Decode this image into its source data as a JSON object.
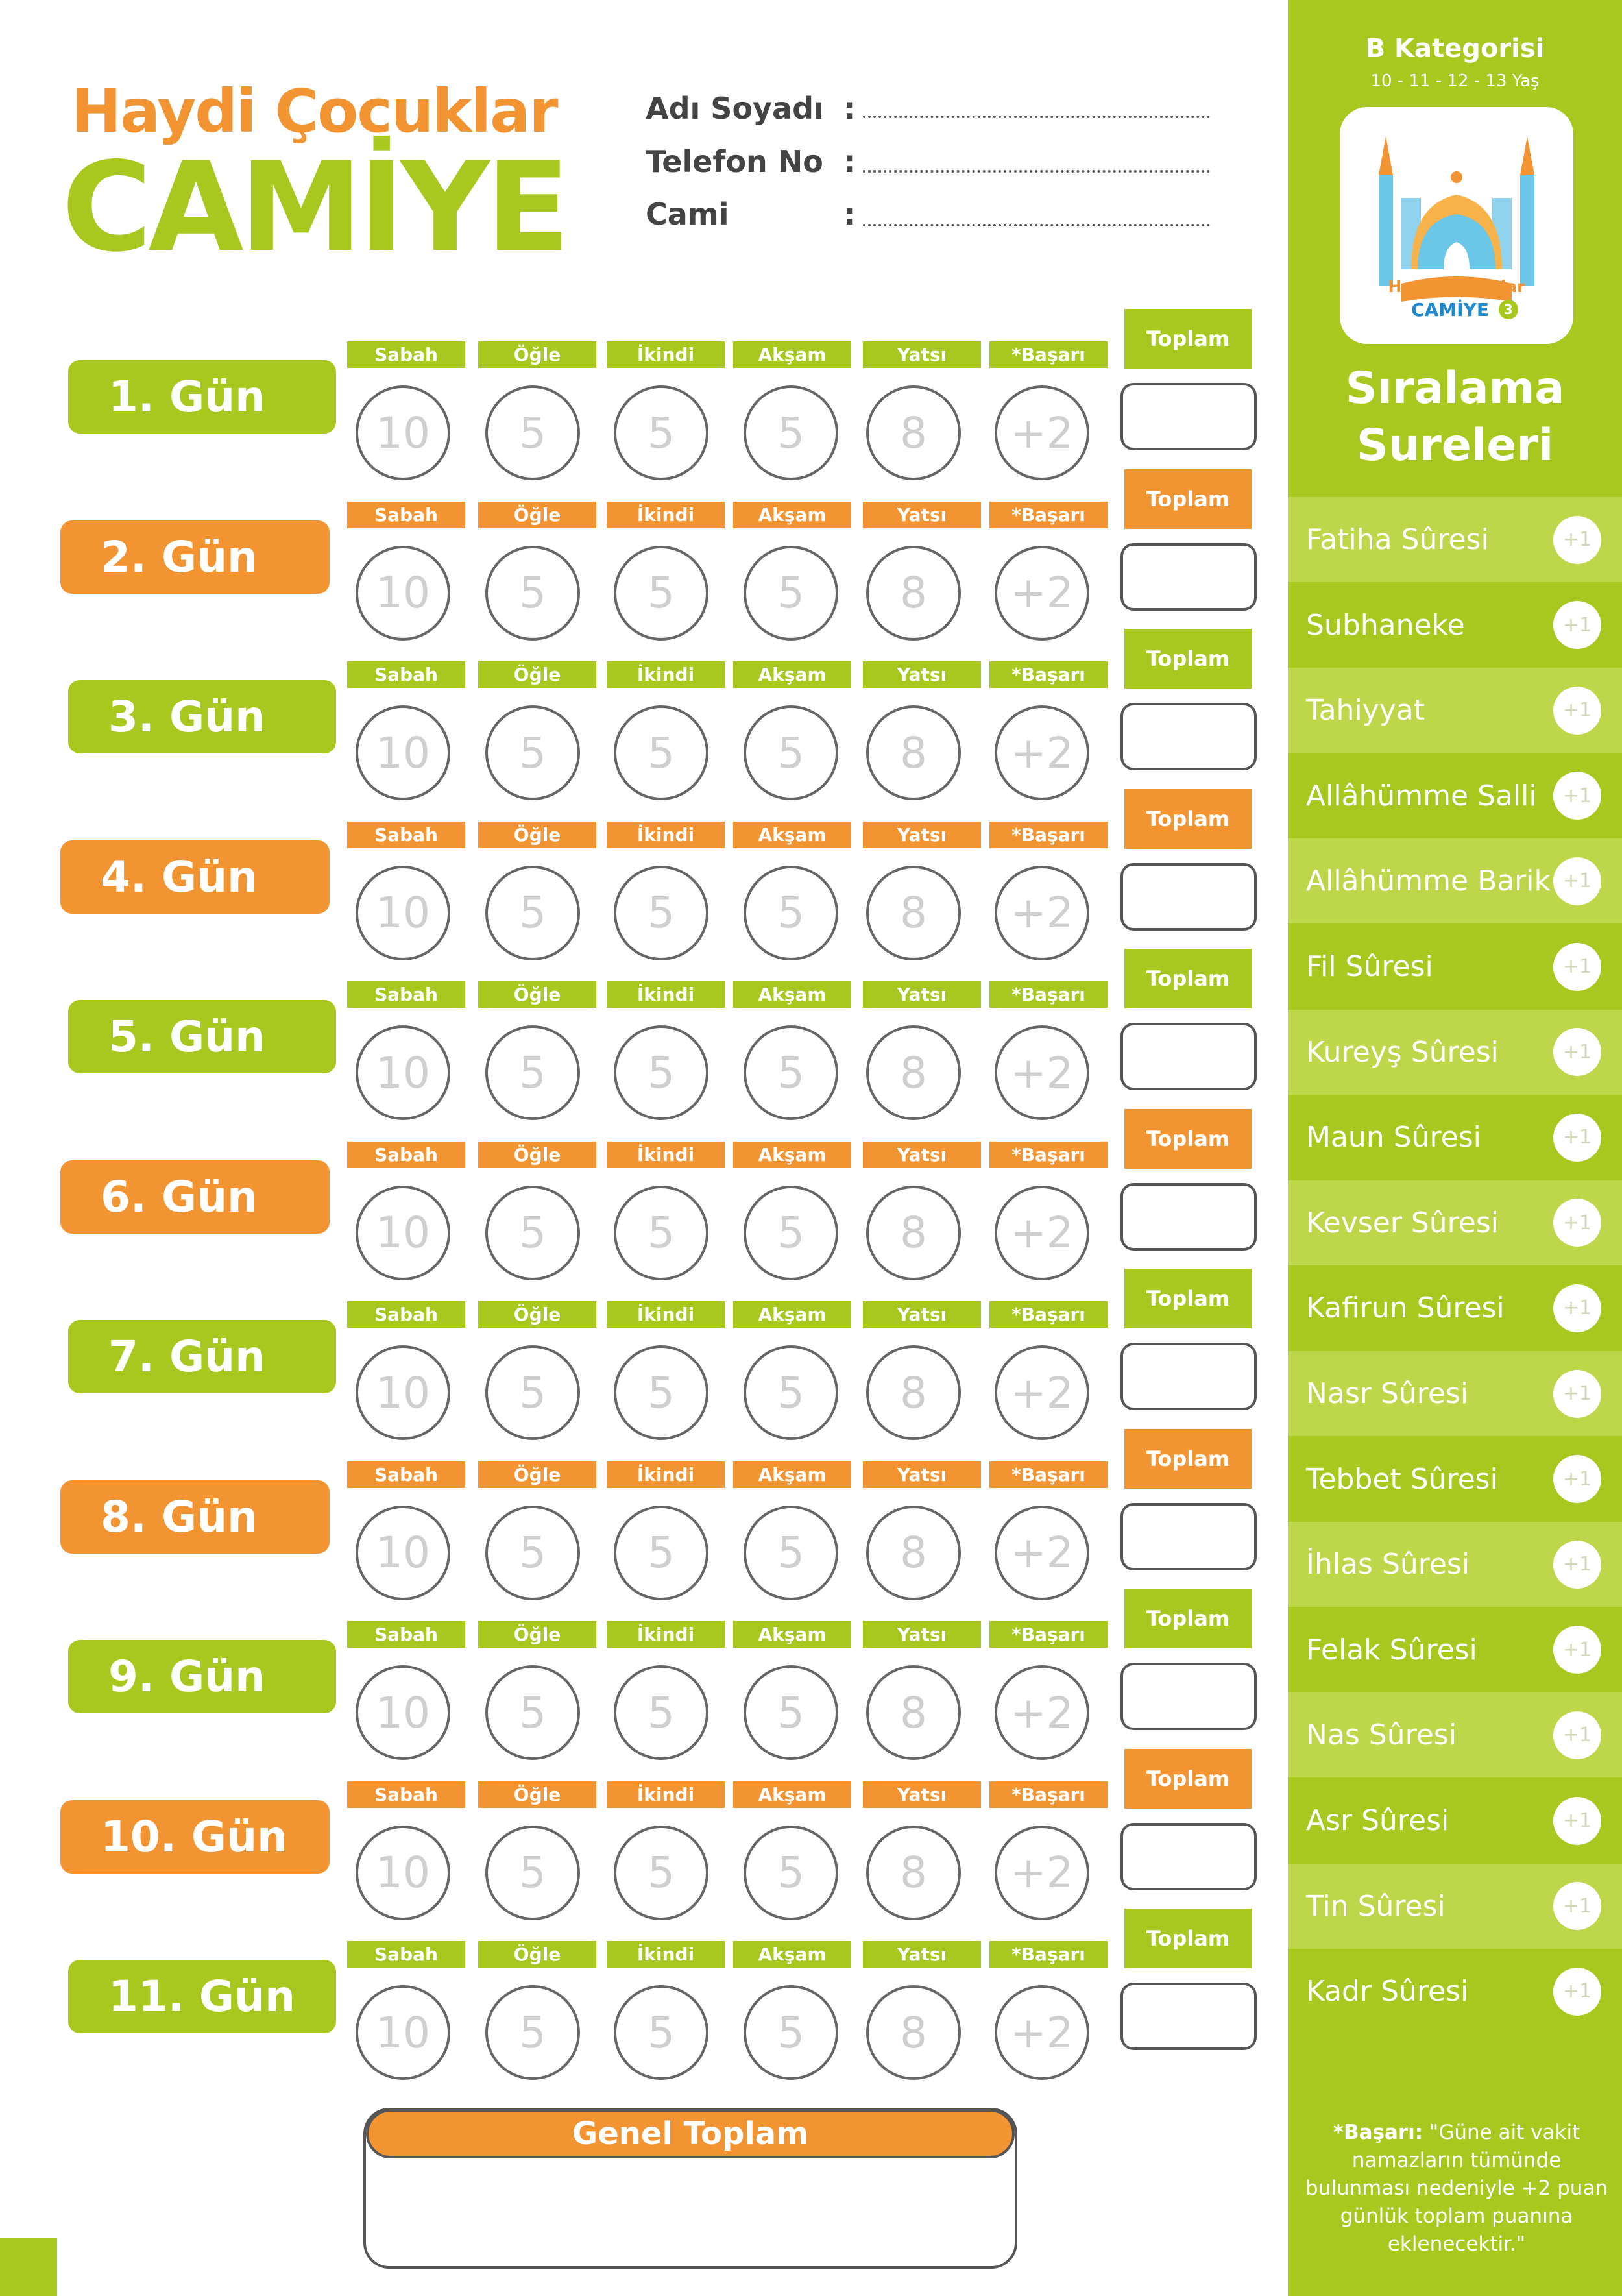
{
  "header": {
    "title_line1": "Haydi Çocuklar",
    "title_line2": "CAMİYE",
    "fields": [
      {
        "label": "Adı Soyadı",
        "colon": ":"
      },
      {
        "label": "Telefon No",
        "colon": ":"
      },
      {
        "label": "Cami",
        "colon": ":"
      }
    ]
  },
  "sidebar": {
    "category_title": "B Kategorisi",
    "category_ages": "10 - 11 - 12 - 13 Yaş",
    "logo": {
      "line1": "Haydi Çocuklar",
      "line2": "CAMİYE",
      "badge": "3"
    },
    "ranking_title_line1": "Sıralama",
    "ranking_title_line2": "Sureleri",
    "surahs": [
      {
        "name": "Fatiha Sûresi",
        "points": "+1"
      },
      {
        "name": "Subhaneke",
        "points": "+1"
      },
      {
        "name": "Tahiyyat",
        "points": "+1"
      },
      {
        "name": "Allâhümme Salli",
        "points": "+1"
      },
      {
        "name": "Allâhümme Barik",
        "points": "+1"
      },
      {
        "name": "Fil Sûresi",
        "points": "+1"
      },
      {
        "name": "Kureyş Sûresi",
        "points": "+1"
      },
      {
        "name": "Maun Sûresi",
        "points": "+1"
      },
      {
        "name": "Kevser Sûresi",
        "points": "+1"
      },
      {
        "name": "Kafirun Sûresi",
        "points": "+1"
      },
      {
        "name": "Nasr Sûresi",
        "points": "+1"
      },
      {
        "name": "Tebbet Sûresi",
        "points": "+1"
      },
      {
        "name": "İhlas Sûresi",
        "points": "+1"
      },
      {
        "name": "Felak Sûresi",
        "points": "+1"
      },
      {
        "name": "Nas Sûresi",
        "points": "+1"
      },
      {
        "name": "Asr Sûresi",
        "points": "+1"
      },
      {
        "name": "Tin Sûresi",
        "points": "+1"
      },
      {
        "name": "Kadr Sûresi",
        "points": "+1"
      }
    ],
    "note_bold": "*Başarı:",
    "note_text": " \"Güne ait vakit namazların tümünde bulunması nedeniyle +2 puan günlük toplam puanına eklenecektir.\""
  },
  "prayer_headers": [
    "Sabah",
    "Öğle",
    "İkindi",
    "Akşam",
    "Yatsı",
    "*Başarı"
  ],
  "prayer_points": [
    "10",
    "5",
    "5",
    "5",
    "8",
    "+2"
  ],
  "toplam_label": "Toplam",
  "days": [
    {
      "label": "1. Gün",
      "color": "#a9c81f"
    },
    {
      "label": "2. Gün",
      "color": "#f39433"
    },
    {
      "label": "3. Gün",
      "color": "#a9c81f"
    },
    {
      "label": "4. Gün",
      "color": "#f39433"
    },
    {
      "label": "5. Gün",
      "color": "#a9c81f"
    },
    {
      "label": "6. Gün",
      "color": "#f39433"
    },
    {
      "label": "7. Gün",
      "color": "#a9c81f"
    },
    {
      "label": "8. Gün",
      "color": "#f39433"
    },
    {
      "label": "9. Gün",
      "color": "#a9c81f"
    },
    {
      "label": "10. Gün",
      "color": "#f39433"
    },
    {
      "label": "11. Gün",
      "color": "#a9c81f"
    }
  ],
  "grand_total_label": "Genel Toplam",
  "colors": {
    "green": "#a9c81f",
    "orange": "#f39433"
  }
}
